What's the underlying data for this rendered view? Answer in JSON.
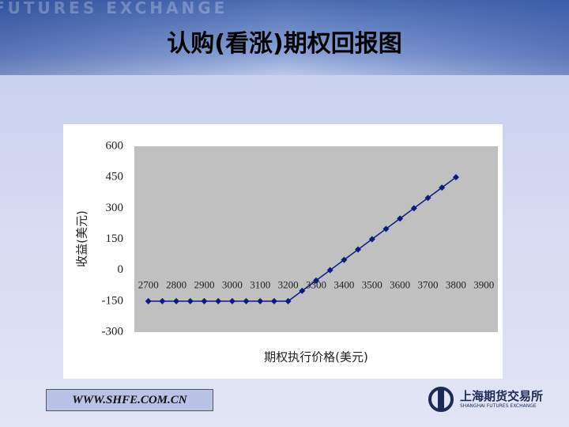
{
  "slide": {
    "title": "认购(看涨)期权回报图",
    "watermark": "FUTURES EXCHANGE",
    "url": "WWW.SHFE.COM.CN",
    "logo_cn": "上海期货交易所",
    "logo_en": "SHANGHAI FUTURES EXCHANGE"
  },
  "chart_data": {
    "type": "line",
    "xlabel": "期权执行价格(美元)",
    "ylabel": "收益(美元)",
    "x": [
      2700,
      2750,
      2800,
      2850,
      2900,
      2950,
      3000,
      3050,
      3100,
      3150,
      3200,
      3250,
      3300,
      3350,
      3400,
      3450,
      3500,
      3550,
      3600,
      3650,
      3700,
      3750,
      3800
    ],
    "values": [
      -150,
      -150,
      -150,
      -150,
      -150,
      -150,
      -150,
      -150,
      -150,
      -150,
      -150,
      -100,
      -50,
      0,
      50,
      100,
      150,
      200,
      250,
      300,
      350,
      400,
      450
    ],
    "color": "#0a1a80",
    "xlim": [
      2650,
      3950
    ],
    "xticks": [
      2700,
      2800,
      2900,
      3000,
      3100,
      3200,
      3300,
      3400,
      3500,
      3600,
      3700,
      3800,
      3900
    ],
    "ylim": [
      -300,
      600
    ],
    "yticks": [
      -300,
      -150,
      0,
      150,
      300,
      450,
      600
    ],
    "grid": false
  }
}
